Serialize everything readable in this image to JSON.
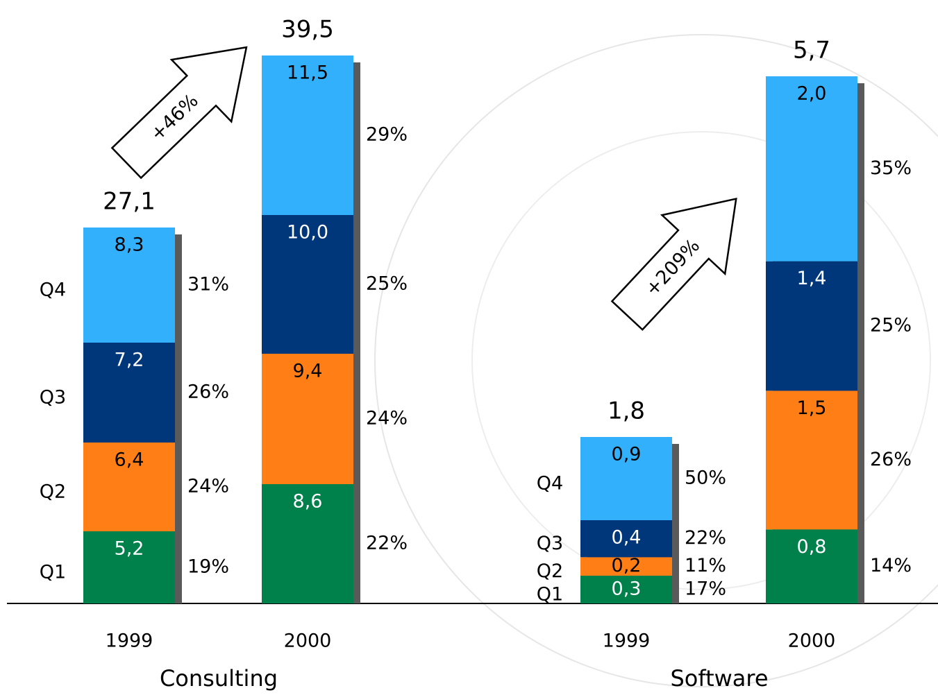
{
  "chart_data": [
    {
      "type": "bar",
      "stacked": true,
      "title": "Consulting",
      "annotation": "+46%",
      "categories": [
        "1999",
        "2000"
      ],
      "ylim": [
        0,
        40
      ],
      "totals": [
        27.1,
        39.5
      ],
      "total_labels": [
        "27,1",
        "39,5"
      ],
      "series": [
        {
          "name": "Q1",
          "color": "#00804a",
          "text_color": "#ffffff",
          "values": [
            5.2,
            8.6
          ],
          "value_labels": [
            "5,2",
            "8,6"
          ],
          "share_labels": [
            "19%",
            "22%"
          ]
        },
        {
          "name": "Q2",
          "color": "#ff7f16",
          "text_color": "#000000",
          "values": [
            6.4,
            9.4
          ],
          "value_labels": [
            "6,4",
            "9,4"
          ],
          "share_labels": [
            "24%",
            "24%"
          ]
        },
        {
          "name": "Q3",
          "color": "#00377a",
          "text_color": "#ffffff",
          "values": [
            7.2,
            10.0
          ],
          "value_labels": [
            "7,2",
            "10,0"
          ],
          "share_labels": [
            "26%",
            "25%"
          ]
        },
        {
          "name": "Q4",
          "color": "#33b0fb",
          "text_color": "#000000",
          "values": [
            8.3,
            11.5
          ],
          "value_labels": [
            "8,3",
            "11,5"
          ],
          "share_labels": [
            "31%",
            "29%"
          ]
        }
      ]
    },
    {
      "type": "bar",
      "stacked": true,
      "title": "Software",
      "annotation": "+209%",
      "categories": [
        "1999",
        "2000"
      ],
      "ylim": [
        0,
        6
      ],
      "totals": [
        1.8,
        5.7
      ],
      "total_labels": [
        "1,8",
        "5,7"
      ],
      "series": [
        {
          "name": "Q1",
          "color": "#00804a",
          "text_color": "#ffffff",
          "values": [
            0.3,
            0.8
          ],
          "value_labels": [
            "0,3",
            "0,8"
          ],
          "share_labels": [
            "17%",
            "14%"
          ]
        },
        {
          "name": "Q2",
          "color": "#ff7f16",
          "text_color": "#000000",
          "values": [
            0.2,
            1.5
          ],
          "value_labels": [
            "0,2",
            "1,5"
          ],
          "share_labels": [
            "11%",
            "26%"
          ]
        },
        {
          "name": "Q3",
          "color": "#00377a",
          "text_color": "#ffffff",
          "values": [
            0.4,
            1.4
          ],
          "value_labels": [
            "0,4",
            "1,4"
          ],
          "share_labels": [
            "22%",
            "25%"
          ]
        },
        {
          "name": "Q4",
          "color": "#33b0fb",
          "text_color": "#000000",
          "values": [
            0.9,
            2.0
          ],
          "value_labels": [
            "0,9",
            "2,0"
          ],
          "share_labels": [
            "50%",
            "35%"
          ]
        }
      ]
    }
  ]
}
